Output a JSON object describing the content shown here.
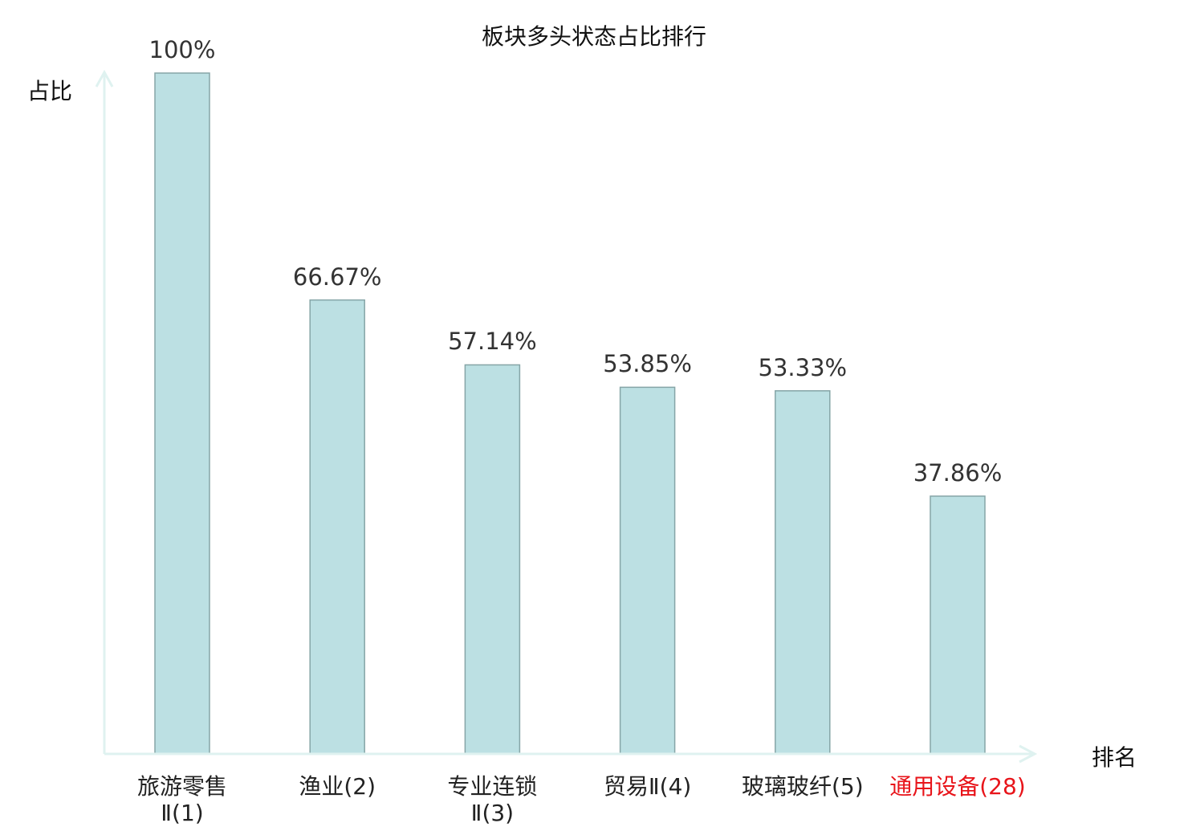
{
  "chart_data": {
    "type": "bar",
    "title": "板块多头状态占比排行",
    "xlabel": "排名",
    "ylabel": "占比",
    "ylim": [
      0,
      100
    ],
    "categories": [
      "旅游零售\nⅡ(1)",
      "渔业(2)",
      "专业连锁\nⅡ(3)",
      "贸易Ⅱ(4)",
      "玻璃玻纤(5)",
      "通用设备(28)"
    ],
    "values": [
      100,
      66.67,
      57.14,
      53.85,
      53.33,
      37.86
    ],
    "value_labels": [
      "100%",
      "66.67%",
      "57.14%",
      "53.85%",
      "53.33%",
      "37.86%"
    ],
    "highlight_index": 5,
    "colors": {
      "bar_fill": "#bce0e3",
      "bar_stroke": "#86a5a7",
      "axis": "#dff2f0",
      "highlight": "#e8141a",
      "text": "#222222"
    }
  }
}
